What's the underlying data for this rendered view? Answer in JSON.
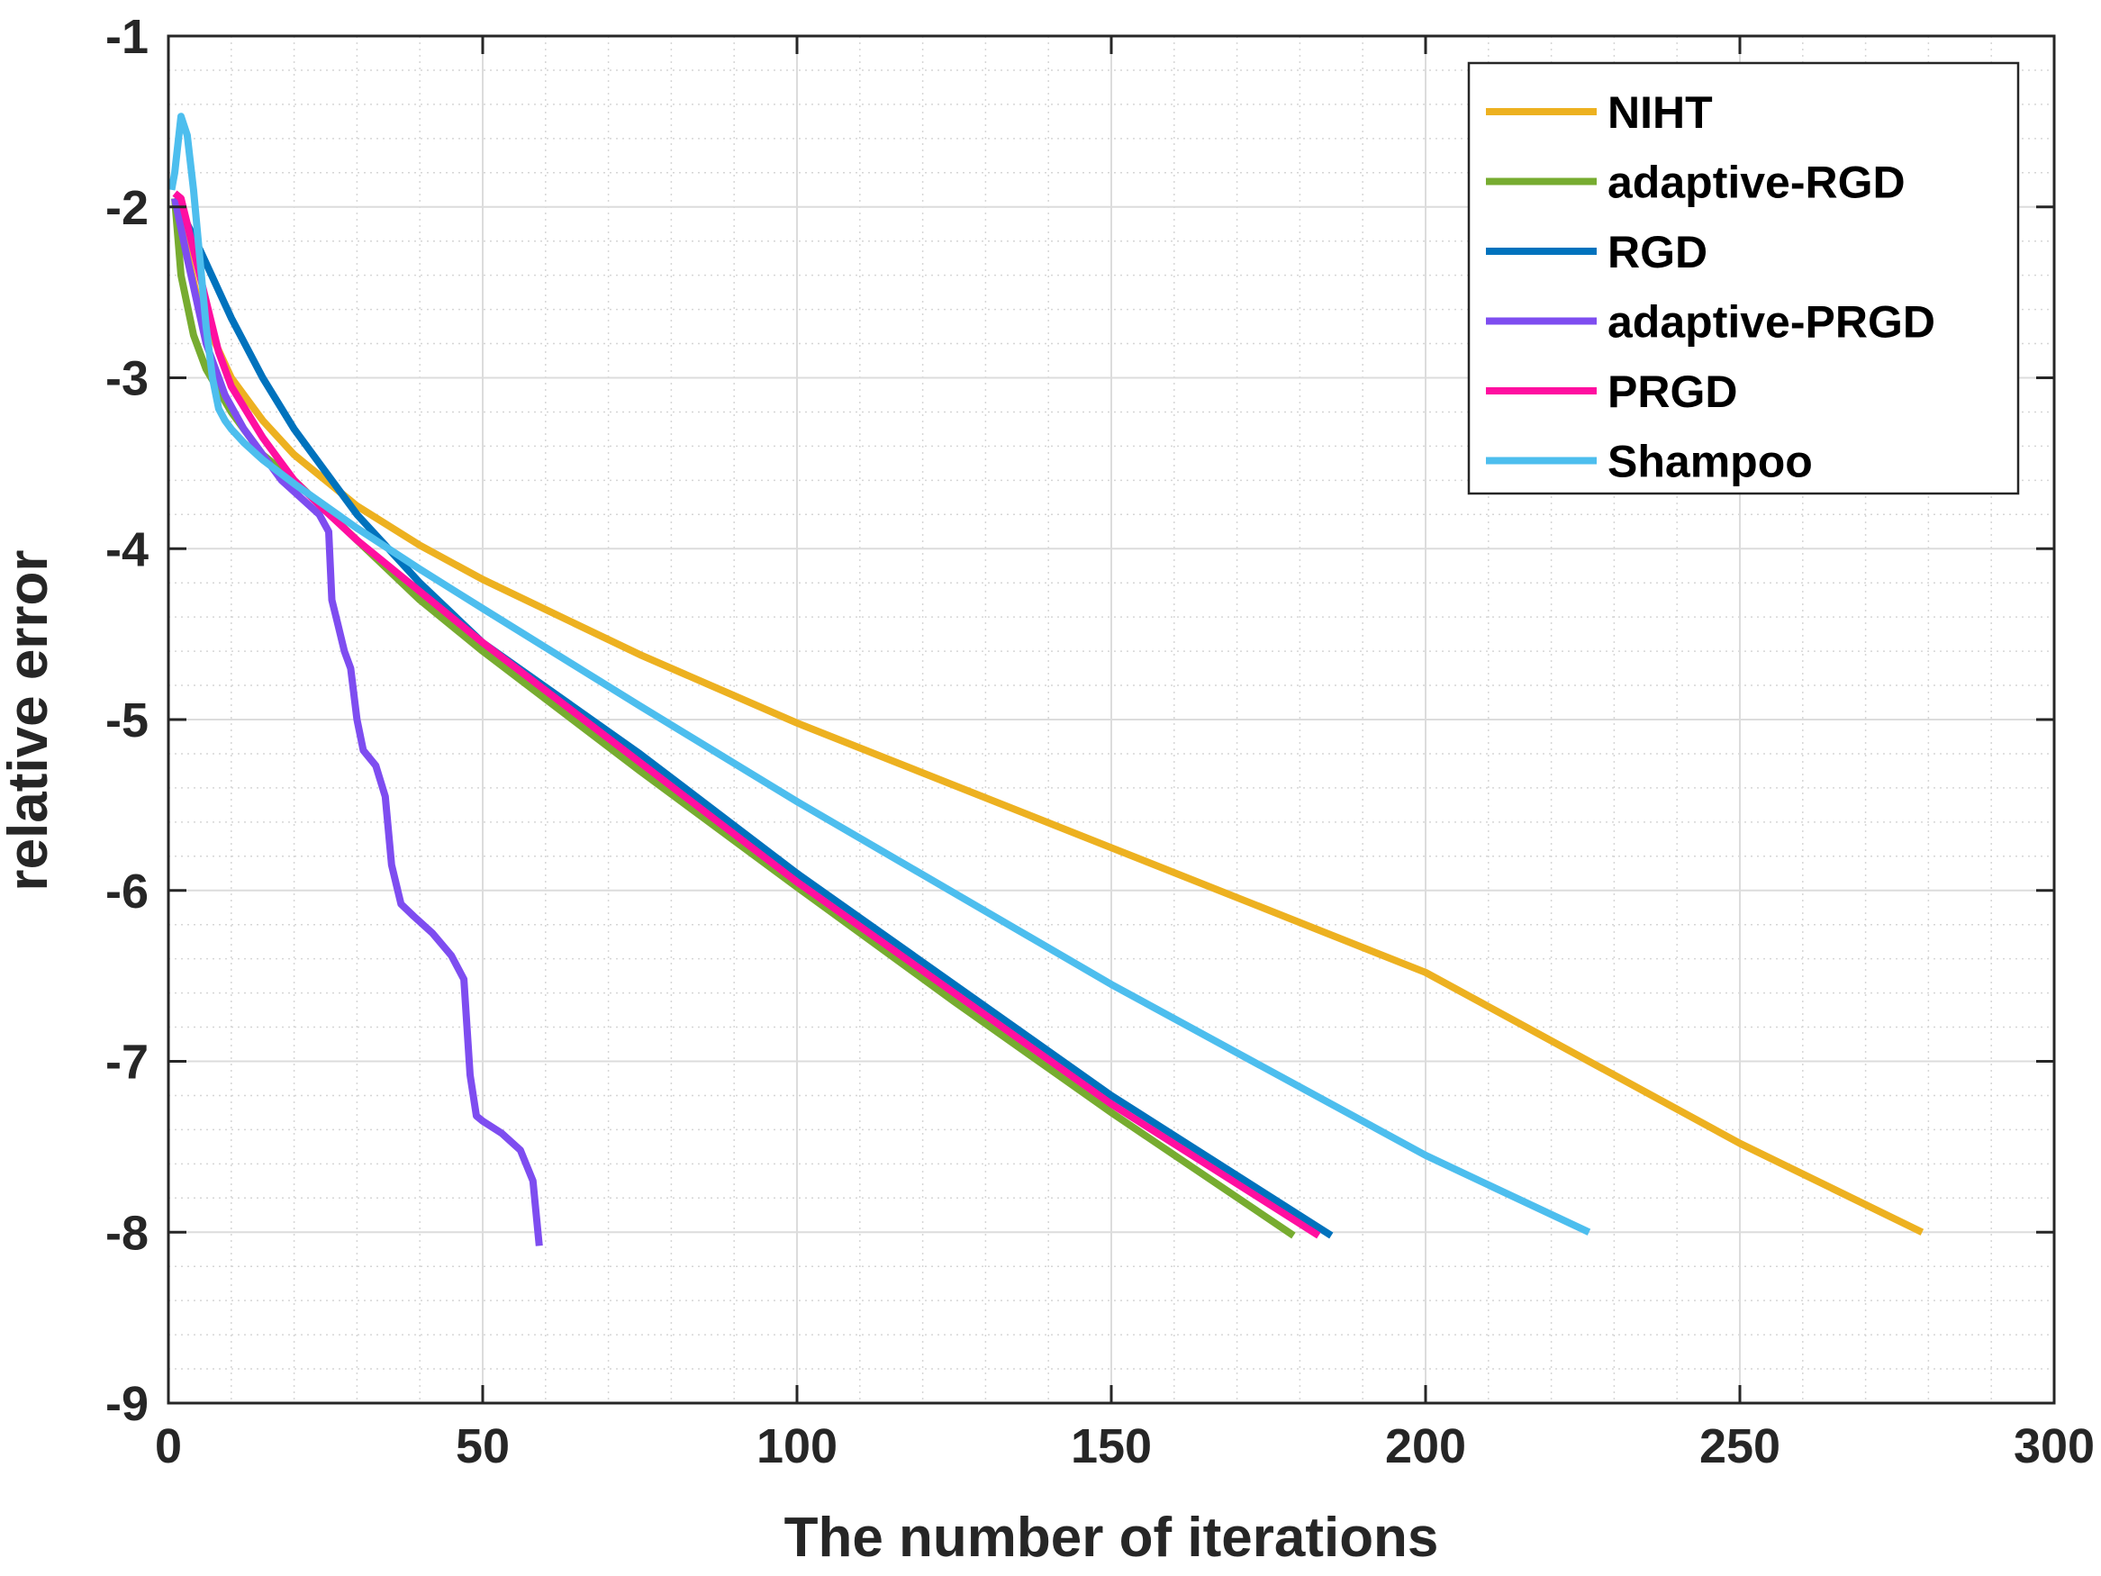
{
  "chart_data": {
    "type": "line",
    "title": "",
    "xlabel": "The number of iterations",
    "ylabel": "relative error",
    "xlim": [
      0,
      300
    ],
    "ylim": [
      -9,
      -1
    ],
    "xticks": [
      "0",
      "50",
      "100",
      "150",
      "200",
      "250",
      "300"
    ],
    "yticks": [
      "-1",
      "-2",
      "-3",
      "-4",
      "-5",
      "-6",
      "-7",
      "-8",
      "-9"
    ],
    "grid": true,
    "minor_grid": true,
    "legend_position": "top-right",
    "series": [
      {
        "name": "NIHT",
        "color": "#EDB120",
        "x": [
          1,
          5,
          10,
          15,
          20,
          30,
          40,
          50,
          75,
          100,
          150,
          200,
          250,
          279
        ],
        "y": [
          -1.95,
          -2.6,
          -3.0,
          -3.25,
          -3.45,
          -3.75,
          -3.98,
          -4.18,
          -4.62,
          -5.02,
          -5.75,
          -6.48,
          -7.48,
          -8.0
        ]
      },
      {
        "name": "adaptive-RGD",
        "color": "#77AC30",
        "x": [
          1,
          2,
          4,
          6,
          10,
          15,
          20,
          30,
          40,
          50,
          75,
          100,
          125,
          150,
          179
        ],
        "y": [
          -1.95,
          -2.4,
          -2.75,
          -2.95,
          -3.2,
          -3.45,
          -3.6,
          -3.95,
          -4.3,
          -4.6,
          -5.3,
          -5.98,
          -6.65,
          -7.3,
          -8.02
        ]
      },
      {
        "name": "RGD",
        "color": "#0072BD",
        "x": [
          1,
          5,
          10,
          15,
          20,
          25,
          30,
          40,
          50,
          75,
          100,
          125,
          150,
          185
        ],
        "y": [
          -1.95,
          -2.25,
          -2.65,
          -3.0,
          -3.3,
          -3.55,
          -3.8,
          -4.2,
          -4.55,
          -5.2,
          -5.9,
          -6.55,
          -7.2,
          -8.02
        ]
      },
      {
        "name": "adaptive-PRGD",
        "color": "#7E4DF0",
        "x": [
          1,
          3,
          6,
          9,
          12,
          15,
          18,
          21,
          24,
          25.5,
          26,
          27,
          28,
          29,
          30,
          31,
          33,
          34.5,
          35.5,
          37,
          39,
          42,
          45,
          47,
          48,
          49,
          50,
          53,
          56,
          58,
          59
        ],
        "y": [
          -1.95,
          -2.3,
          -2.8,
          -3.1,
          -3.3,
          -3.45,
          -3.6,
          -3.7,
          -3.8,
          -3.9,
          -4.3,
          -4.45,
          -4.6,
          -4.7,
          -5.0,
          -5.18,
          -5.27,
          -5.45,
          -5.85,
          -6.08,
          -6.15,
          -6.25,
          -6.38,
          -6.52,
          -7.08,
          -7.32,
          -7.35,
          -7.42,
          -7.52,
          -7.7,
          -8.08
        ]
      },
      {
        "name": "PRGD",
        "color": "#FF0FA0",
        "x": [
          1,
          2,
          5,
          8,
          10,
          15,
          20,
          25,
          30,
          40,
          50,
          75,
          100,
          125,
          150,
          183
        ],
        "y": [
          -1.92,
          -1.95,
          -2.4,
          -2.85,
          -3.05,
          -3.35,
          -3.6,
          -3.78,
          -3.95,
          -4.25,
          -4.55,
          -5.25,
          -5.95,
          -6.6,
          -7.25,
          -8.02
        ]
      },
      {
        "name": "Shampoo",
        "color": "#4DBEEE",
        "x": [
          0.5,
          1,
          2,
          3,
          4,
          5,
          6,
          7,
          8,
          9,
          10,
          12,
          15,
          20,
          25,
          30,
          40,
          50,
          75,
          100,
          150,
          200,
          226
        ],
        "y": [
          -1.9,
          -1.8,
          -1.47,
          -1.58,
          -1.9,
          -2.3,
          -2.7,
          -3.0,
          -3.18,
          -3.25,
          -3.3,
          -3.38,
          -3.48,
          -3.62,
          -3.75,
          -3.88,
          -4.12,
          -4.35,
          -4.92,
          -5.48,
          -6.55,
          -7.55,
          -8.0
        ]
      }
    ]
  }
}
